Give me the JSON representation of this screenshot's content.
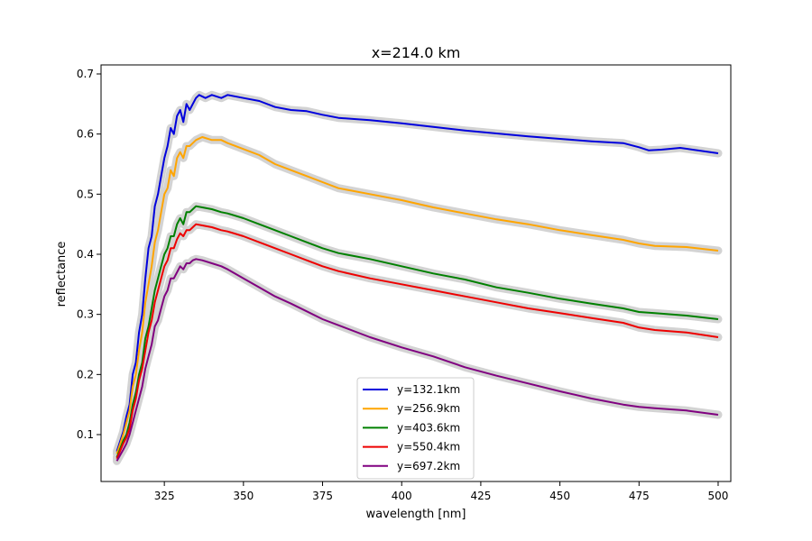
{
  "chart_data": {
    "type": "line",
    "title": "x=214.0 km",
    "xlabel": "wavelength [nm]",
    "ylabel": "reflectance",
    "xlim": [
      305,
      504
    ],
    "ylim": [
      0.022,
      0.715
    ],
    "xticks": [
      325,
      350,
      375,
      400,
      425,
      450,
      475,
      500
    ],
    "yticks": [
      0.1,
      0.2,
      0.3,
      0.4,
      0.5,
      0.6,
      0.7
    ],
    "xtick_labels": [
      "325",
      "350",
      "375",
      "400",
      "425",
      "450",
      "475",
      "500"
    ],
    "ytick_labels": [
      "0.1",
      "0.2",
      "0.3",
      "0.4",
      "0.5",
      "0.6",
      "0.7"
    ],
    "grid": false,
    "legend_position": "lower-center",
    "uncertainty_band_color": "#d3d3d3",
    "series": [
      {
        "name": "y=132.1km",
        "color": "#0000dd",
        "points": [
          [
            310,
            0.072
          ],
          [
            312,
            0.105
          ],
          [
            313,
            0.13
          ],
          [
            314,
            0.15
          ],
          [
            315,
            0.2
          ],
          [
            316,
            0.22
          ],
          [
            317,
            0.27
          ],
          [
            318,
            0.3
          ],
          [
            319,
            0.36
          ],
          [
            320,
            0.41
          ],
          [
            321,
            0.43
          ],
          [
            322,
            0.48
          ],
          [
            323,
            0.5
          ],
          [
            324,
            0.53
          ],
          [
            325,
            0.56
          ],
          [
            326,
            0.58
          ],
          [
            327,
            0.61
          ],
          [
            328,
            0.6
          ],
          [
            329,
            0.63
          ],
          [
            330,
            0.64
          ],
          [
            331,
            0.62
          ],
          [
            332,
            0.65
          ],
          [
            333,
            0.64
          ],
          [
            334,
            0.65
          ],
          [
            335,
            0.66
          ],
          [
            336,
            0.665
          ],
          [
            338,
            0.66
          ],
          [
            340,
            0.665
          ],
          [
            343,
            0.66
          ],
          [
            345,
            0.665
          ],
          [
            350,
            0.66
          ],
          [
            355,
            0.655
          ],
          [
            360,
            0.645
          ],
          [
            365,
            0.64
          ],
          [
            370,
            0.638
          ],
          [
            375,
            0.632
          ],
          [
            380,
            0.627
          ],
          [
            385,
            0.625
          ],
          [
            390,
            0.623
          ],
          [
            400,
            0.618
          ],
          [
            410,
            0.612
          ],
          [
            420,
            0.606
          ],
          [
            430,
            0.601
          ],
          [
            440,
            0.596
          ],
          [
            450,
            0.592
          ],
          [
            460,
            0.588
          ],
          [
            470,
            0.585
          ],
          [
            475,
            0.578
          ],
          [
            478,
            0.573
          ],
          [
            482,
            0.574
          ],
          [
            488,
            0.577
          ],
          [
            492,
            0.574
          ],
          [
            500,
            0.568
          ]
        ]
      },
      {
        "name": "y=256.9km",
        "color": "#ffa500",
        "points": [
          [
            310,
            0.068
          ],
          [
            312,
            0.1
          ],
          [
            313,
            0.12
          ],
          [
            314,
            0.14
          ],
          [
            315,
            0.18
          ],
          [
            316,
            0.2
          ],
          [
            317,
            0.24
          ],
          [
            318,
            0.27
          ],
          [
            319,
            0.32
          ],
          [
            320,
            0.35
          ],
          [
            321,
            0.38
          ],
          [
            322,
            0.42
          ],
          [
            323,
            0.44
          ],
          [
            324,
            0.47
          ],
          [
            325,
            0.5
          ],
          [
            326,
            0.51
          ],
          [
            327,
            0.54
          ],
          [
            328,
            0.53
          ],
          [
            329,
            0.56
          ],
          [
            330,
            0.57
          ],
          [
            331,
            0.56
          ],
          [
            332,
            0.58
          ],
          [
            333,
            0.58
          ],
          [
            334,
            0.585
          ],
          [
            335,
            0.59
          ],
          [
            337,
            0.595
          ],
          [
            340,
            0.59
          ],
          [
            343,
            0.59
          ],
          [
            345,
            0.585
          ],
          [
            350,
            0.575
          ],
          [
            355,
            0.565
          ],
          [
            360,
            0.55
          ],
          [
            365,
            0.54
          ],
          [
            370,
            0.53
          ],
          [
            375,
            0.52
          ],
          [
            380,
            0.51
          ],
          [
            390,
            0.5
          ],
          [
            400,
            0.49
          ],
          [
            410,
            0.478
          ],
          [
            420,
            0.468
          ],
          [
            430,
            0.458
          ],
          [
            440,
            0.45
          ],
          [
            450,
            0.44
          ],
          [
            460,
            0.432
          ],
          [
            470,
            0.424
          ],
          [
            475,
            0.418
          ],
          [
            480,
            0.414
          ],
          [
            490,
            0.412
          ],
          [
            500,
            0.406
          ]
        ]
      },
      {
        "name": "y=403.6km",
        "color": "#008000",
        "points": [
          [
            310,
            0.062
          ],
          [
            312,
            0.09
          ],
          [
            313,
            0.1
          ],
          [
            314,
            0.12
          ],
          [
            315,
            0.15
          ],
          [
            316,
            0.17
          ],
          [
            317,
            0.2
          ],
          [
            318,
            0.22
          ],
          [
            319,
            0.26
          ],
          [
            320,
            0.28
          ],
          [
            321,
            0.31
          ],
          [
            322,
            0.34
          ],
          [
            323,
            0.36
          ],
          [
            324,
            0.38
          ],
          [
            325,
            0.4
          ],
          [
            326,
            0.41
          ],
          [
            327,
            0.43
          ],
          [
            328,
            0.43
          ],
          [
            329,
            0.45
          ],
          [
            330,
            0.46
          ],
          [
            331,
            0.45
          ],
          [
            332,
            0.47
          ],
          [
            333,
            0.47
          ],
          [
            334,
            0.475
          ],
          [
            335,
            0.48
          ],
          [
            337,
            0.478
          ],
          [
            340,
            0.475
          ],
          [
            343,
            0.47
          ],
          [
            345,
            0.468
          ],
          [
            350,
            0.46
          ],
          [
            355,
            0.45
          ],
          [
            360,
            0.44
          ],
          [
            365,
            0.43
          ],
          [
            370,
            0.42
          ],
          [
            375,
            0.41
          ],
          [
            380,
            0.402
          ],
          [
            390,
            0.392
          ],
          [
            400,
            0.38
          ],
          [
            410,
            0.368
          ],
          [
            420,
            0.358
          ],
          [
            430,
            0.345
          ],
          [
            440,
            0.336
          ],
          [
            450,
            0.326
          ],
          [
            460,
            0.318
          ],
          [
            470,
            0.31
          ],
          [
            475,
            0.304
          ],
          [
            480,
            0.302
          ],
          [
            490,
            0.298
          ],
          [
            500,
            0.292
          ]
        ]
      },
      {
        "name": "y=550.4km",
        "color": "#ee0000",
        "points": [
          [
            310,
            0.06
          ],
          [
            312,
            0.085
          ],
          [
            313,
            0.095
          ],
          [
            314,
            0.11
          ],
          [
            315,
            0.14
          ],
          [
            316,
            0.16
          ],
          [
            317,
            0.19
          ],
          [
            318,
            0.21
          ],
          [
            319,
            0.24
          ],
          [
            320,
            0.27
          ],
          [
            321,
            0.29
          ],
          [
            322,
            0.32
          ],
          [
            323,
            0.34
          ],
          [
            324,
            0.36
          ],
          [
            325,
            0.38
          ],
          [
            326,
            0.39
          ],
          [
            327,
            0.41
          ],
          [
            328,
            0.41
          ],
          [
            329,
            0.425
          ],
          [
            330,
            0.435
          ],
          [
            331,
            0.43
          ],
          [
            332,
            0.44
          ],
          [
            333,
            0.44
          ],
          [
            334,
            0.445
          ],
          [
            335,
            0.45
          ],
          [
            337,
            0.448
          ],
          [
            340,
            0.445
          ],
          [
            343,
            0.44
          ],
          [
            345,
            0.438
          ],
          [
            350,
            0.43
          ],
          [
            355,
            0.42
          ],
          [
            360,
            0.41
          ],
          [
            365,
            0.4
          ],
          [
            370,
            0.39
          ],
          [
            375,
            0.38
          ],
          [
            380,
            0.372
          ],
          [
            390,
            0.36
          ],
          [
            400,
            0.35
          ],
          [
            410,
            0.34
          ],
          [
            420,
            0.33
          ],
          [
            430,
            0.32
          ],
          [
            440,
            0.31
          ],
          [
            450,
            0.302
          ],
          [
            460,
            0.294
          ],
          [
            470,
            0.286
          ],
          [
            475,
            0.278
          ],
          [
            480,
            0.274
          ],
          [
            490,
            0.27
          ],
          [
            500,
            0.262
          ]
        ]
      },
      {
        "name": "y=697.2km",
        "color": "#800080",
        "points": [
          [
            310,
            0.056
          ],
          [
            312,
            0.075
          ],
          [
            313,
            0.085
          ],
          [
            314,
            0.1
          ],
          [
            315,
            0.12
          ],
          [
            316,
            0.14
          ],
          [
            317,
            0.16
          ],
          [
            318,
            0.18
          ],
          [
            319,
            0.21
          ],
          [
            320,
            0.23
          ],
          [
            321,
            0.25
          ],
          [
            322,
            0.28
          ],
          [
            323,
            0.29
          ],
          [
            324,
            0.31
          ],
          [
            325,
            0.33
          ],
          [
            326,
            0.34
          ],
          [
            327,
            0.36
          ],
          [
            328,
            0.36
          ],
          [
            329,
            0.37
          ],
          [
            330,
            0.38
          ],
          [
            331,
            0.375
          ],
          [
            332,
            0.385
          ],
          [
            333,
            0.385
          ],
          [
            334,
            0.39
          ],
          [
            335,
            0.392
          ],
          [
            337,
            0.39
          ],
          [
            340,
            0.385
          ],
          [
            343,
            0.38
          ],
          [
            345,
            0.375
          ],
          [
            350,
            0.36
          ],
          [
            355,
            0.345
          ],
          [
            360,
            0.33
          ],
          [
            365,
            0.318
          ],
          [
            370,
            0.305
          ],
          [
            375,
            0.292
          ],
          [
            380,
            0.282
          ],
          [
            390,
            0.262
          ],
          [
            400,
            0.245
          ],
          [
            410,
            0.23
          ],
          [
            420,
            0.212
          ],
          [
            430,
            0.198
          ],
          [
            440,
            0.185
          ],
          [
            450,
            0.172
          ],
          [
            460,
            0.16
          ],
          [
            470,
            0.15
          ],
          [
            475,
            0.146
          ],
          [
            480,
            0.144
          ],
          [
            490,
            0.14
          ],
          [
            500,
            0.133
          ]
        ]
      }
    ]
  }
}
